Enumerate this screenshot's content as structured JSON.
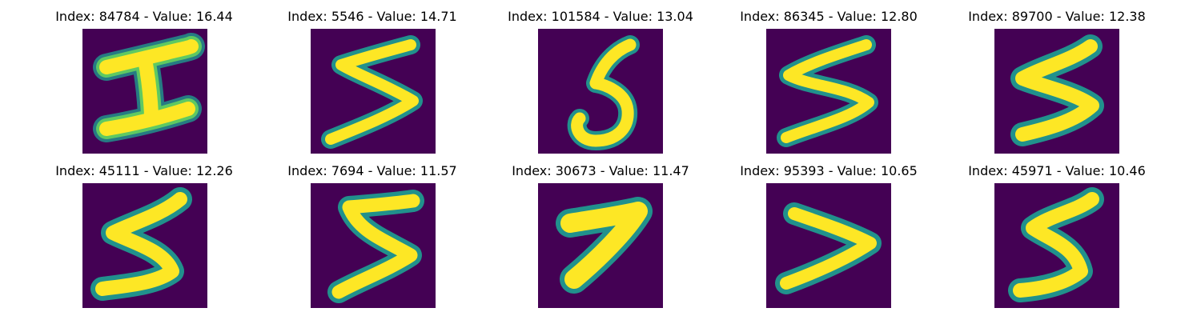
{
  "colors": {
    "background": "#440154",
    "stroke_outer": "#21918c",
    "stroke_mid": "#5ec962",
    "stroke_core": "#fde725"
  },
  "cells": [
    {
      "title": "Index: 84784 - Value: 16.44",
      "shape": "I"
    },
    {
      "title": "Index: 5546 - Value: 14.71",
      "shape": "5"
    },
    {
      "title": "Index: 101584 - Value: 13.04",
      "shape": "5"
    },
    {
      "title": "Index: 86345 - Value: 12.80",
      "shape": "5"
    },
    {
      "title": "Index: 89700 - Value: 12.38",
      "shape": "5"
    },
    {
      "title": "Index: 45111 - Value: 12.26",
      "shape": "5"
    },
    {
      "title": "Index: 7694 - Value: 11.57",
      "shape": "5"
    },
    {
      "title": "Index: 30673 - Value: 11.47",
      "shape": "7"
    },
    {
      "title": "Index: 95393 - Value: 10.65",
      "shape": ">"
    },
    {
      "title": "Index: 45971 - Value: 10.46",
      "shape": "5"
    }
  ]
}
